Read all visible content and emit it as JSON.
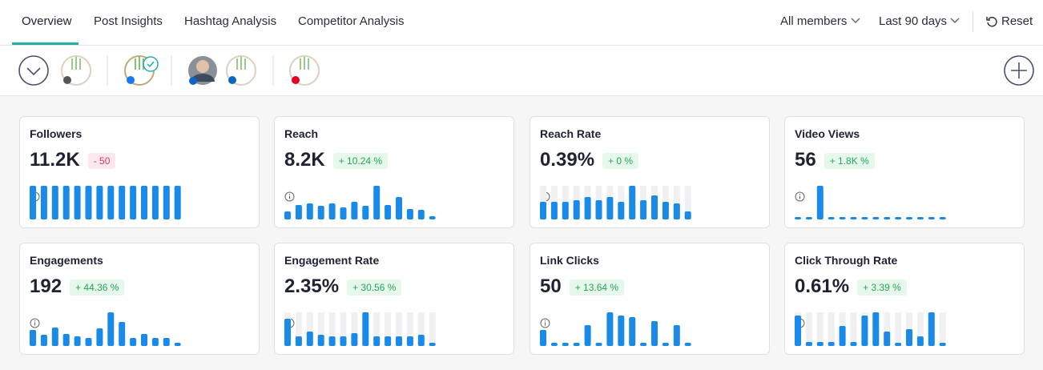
{
  "nav": {
    "tabs": [
      "Overview",
      "Post Insights",
      "Hashtag Analysis",
      "Competitor Analysis"
    ],
    "active_tab": 0,
    "filters": [
      "All members",
      "Last 90 days"
    ],
    "reset": "Reset"
  },
  "cards": [
    {
      "title": "Followers",
      "value": "11.2K",
      "change": "- 50",
      "badge_color": "red",
      "track": false,
      "bars": [
        42,
        42,
        42,
        42,
        42,
        42,
        42,
        42,
        42,
        42,
        42,
        42,
        42,
        42
      ]
    },
    {
      "title": "Reach",
      "value": "8.2K",
      "change": "+ 10.24 %",
      "badge_color": "green",
      "track": false,
      "bars": [
        10,
        18,
        20,
        17,
        20,
        15,
        22,
        17,
        42,
        18,
        28,
        13,
        12,
        4
      ]
    },
    {
      "title": "Reach Rate",
      "value": "0.39%",
      "change": "+ 0 %",
      "badge_color": "green",
      "track": true,
      "bars": [
        22,
        22,
        22,
        24,
        28,
        24,
        28,
        22,
        42,
        24,
        30,
        22,
        20,
        10
      ]
    },
    {
      "title": "Video Views",
      "value": "56",
      "change": "+ 1.8K %",
      "badge_color": "green",
      "track": false,
      "bars": [
        3,
        3,
        42,
        3,
        3,
        3,
        3,
        3,
        3,
        3,
        3,
        3,
        3,
        3
      ]
    },
    {
      "title": "Engagements",
      "value": "192",
      "change": "+ 44.36 %",
      "badge_color": "green",
      "track": false,
      "bars": [
        20,
        14,
        23,
        15,
        12,
        10,
        22,
        42,
        30,
        10,
        15,
        10,
        10,
        4
      ]
    },
    {
      "title": "Engagement Rate",
      "value": "2.35%",
      "change": "+ 30.56 %",
      "badge_color": "green",
      "track": true,
      "bars": [
        34,
        12,
        18,
        14,
        12,
        12,
        16,
        42,
        12,
        12,
        12,
        12,
        14,
        4
      ]
    },
    {
      "title": "Link Clicks",
      "value": "50",
      "change": "+ 13.64 %",
      "badge_color": "green",
      "track": false,
      "bars": [
        20,
        4,
        4,
        4,
        26,
        4,
        42,
        38,
        36,
        4,
        31,
        4,
        26,
        4
      ]
    },
    {
      "title": "Click Through Rate",
      "value": "0.61%",
      "change": "+ 3.39 %",
      "badge_color": "green",
      "track": true,
      "bars": [
        38,
        5,
        5,
        5,
        25,
        5,
        38,
        42,
        18,
        4,
        21,
        12,
        42,
        4
      ]
    }
  ]
}
